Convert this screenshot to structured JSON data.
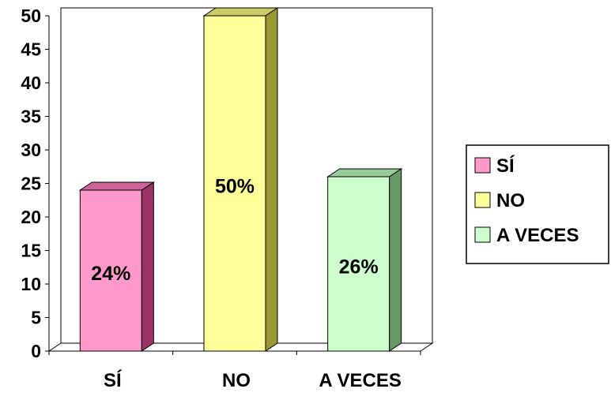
{
  "chart_data": {
    "type": "bar",
    "title": "",
    "xlabel": "",
    "ylabel": "",
    "categories": [
      "SÍ",
      "NO",
      "A VECES"
    ],
    "values": [
      24,
      50,
      26
    ],
    "data_labels": [
      "24%",
      "50%",
      "26%"
    ],
    "ylim": [
      0,
      50
    ],
    "yticks": [
      "0",
      "5",
      "10",
      "15",
      "20",
      "25",
      "30",
      "35",
      "40",
      "45",
      "50"
    ],
    "grid": false,
    "style": "3d-column",
    "legend": {
      "position": "right",
      "entries": [
        "SÍ",
        "NO",
        "A VECES"
      ]
    },
    "colors": {
      "front": [
        "#ff99cc",
        "#ffff99",
        "#ccffcc"
      ],
      "top": [
        "#cc6699",
        "#cccc66",
        "#99cc99"
      ],
      "side": [
        "#993366",
        "#999933",
        "#669966"
      ]
    }
  }
}
